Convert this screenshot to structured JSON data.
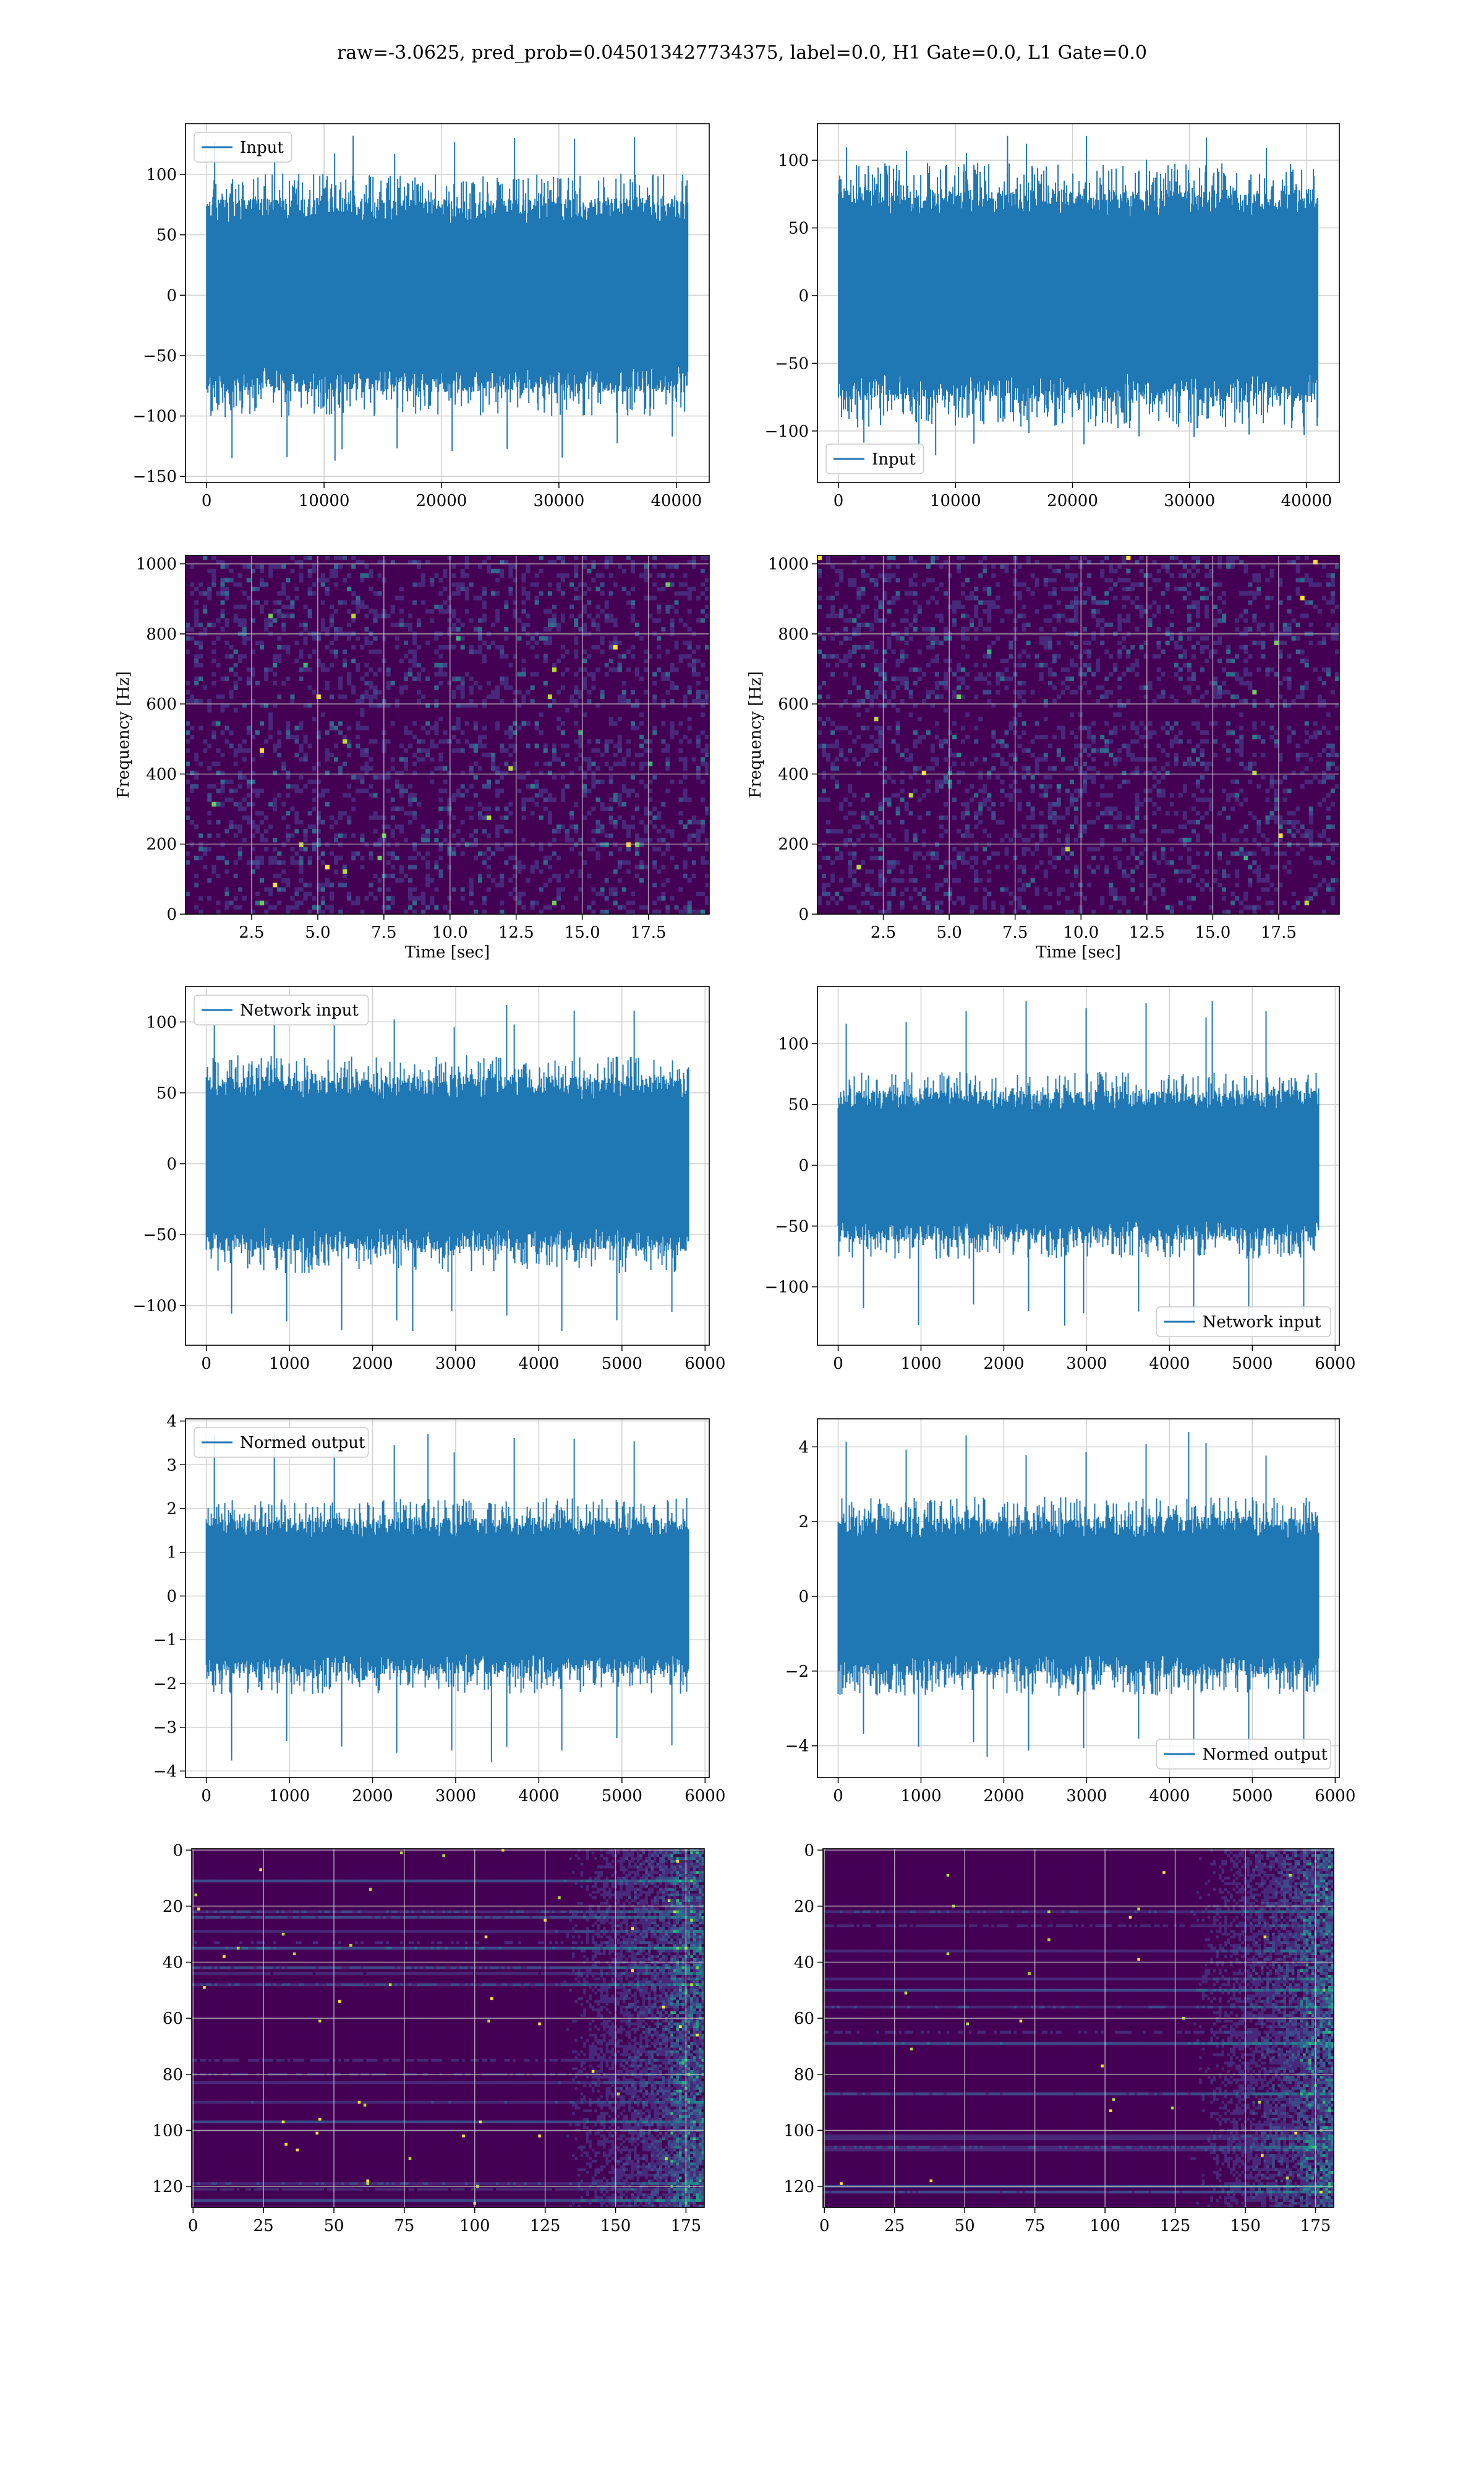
{
  "title": "raw=-3.0625, pred_prob=0.045013427734375, label=0.0, H1 Gate=0.0, L1 Gate=0.0",
  "colors": {
    "line": "#1f77b4",
    "grid": "#d0d0d0",
    "viridis": [
      "#440154",
      "#482878",
      "#3e4989",
      "#31688e",
      "#26828e",
      "#1f9e89",
      "#35b779",
      "#6ece58",
      "#b5de2b",
      "#fde725"
    ]
  },
  "chart_data": [
    {
      "id": "ts-input-left",
      "type": "line",
      "series": [
        {
          "name": "Input",
          "envelope": {
            "n": 40960,
            "typical_abs": 72,
            "peak_max": 132,
            "peak_min": -137
          }
        }
      ],
      "xlim": [
        -1800,
        42800
      ],
      "ylim": [
        -155,
        142
      ],
      "xticks": [
        0,
        10000,
        20000,
        30000,
        40000
      ],
      "yticks": [
        -150,
        -100,
        -50,
        0,
        50,
        100
      ],
      "legend": "upper-left",
      "grid": true
    },
    {
      "id": "ts-input-right",
      "type": "line",
      "series": [
        {
          "name": "Input",
          "envelope": {
            "n": 40960,
            "typical_abs": 70,
            "peak_max": 118,
            "peak_min": -118
          }
        }
      ],
      "xlim": [
        -1800,
        42800
      ],
      "ylim": [
        -138,
        127
      ],
      "xticks": [
        0,
        10000,
        20000,
        30000,
        40000
      ],
      "yticks": [
        -100,
        -50,
        0,
        50,
        100
      ],
      "legend": "lower-left",
      "grid": true
    },
    {
      "id": "spec-left",
      "type": "heatmap",
      "xlabel": "Time [sec]",
      "ylabel": "Frequency [Hz]",
      "xlim": [
        0,
        19.8
      ],
      "ylim": [
        0,
        1024
      ],
      "xticks": [
        2.5,
        5.0,
        7.5,
        10.0,
        12.5,
        15.0,
        17.5
      ],
      "yticks": [
        0,
        200,
        400,
        600,
        800,
        1000
      ],
      "colormap": "viridis",
      "grid": true
    },
    {
      "id": "spec-right",
      "type": "heatmap",
      "xlabel": "Time [sec]",
      "ylabel": "Frequency [Hz]",
      "xlim": [
        0,
        19.8
      ],
      "ylim": [
        0,
        1024
      ],
      "xticks": [
        2.5,
        5.0,
        7.5,
        10.0,
        12.5,
        15.0,
        17.5
      ],
      "yticks": [
        0,
        200,
        400,
        600,
        800,
        1000
      ],
      "colormap": "viridis",
      "grid": true
    },
    {
      "id": "ts-network-left",
      "type": "line",
      "series": [
        {
          "name": "Network input",
          "envelope": {
            "n": 5800,
            "typical_abs": 55,
            "peak_max": 112,
            "peak_min": -118
          }
        }
      ],
      "xlim": [
        -250,
        6050
      ],
      "ylim": [
        -128,
        125
      ],
      "xticks": [
        0,
        1000,
        2000,
        3000,
        4000,
        5000,
        6000
      ],
      "yticks": [
        -100,
        -50,
        0,
        50,
        100
      ],
      "legend": "upper-left",
      "grid": true
    },
    {
      "id": "ts-network-right",
      "type": "line",
      "series": [
        {
          "name": "Network input",
          "envelope": {
            "n": 5800,
            "typical_abs": 55,
            "peak_max": 135,
            "peak_min": -132
          }
        }
      ],
      "xlim": [
        -250,
        6050
      ],
      "ylim": [
        -148,
        147
      ],
      "xticks": [
        0,
        1000,
        2000,
        3000,
        4000,
        5000,
        6000
      ],
      "yticks": [
        -100,
        -50,
        0,
        50,
        100
      ],
      "legend": "lower-right",
      "grid": true
    },
    {
      "id": "ts-normed-left",
      "type": "line",
      "series": [
        {
          "name": "Normed output",
          "envelope": {
            "n": 5800,
            "typical_abs": 1.6,
            "peak_max": 3.7,
            "peak_min": -3.8
          }
        }
      ],
      "xlim": [
        -250,
        6050
      ],
      "ylim": [
        -4.15,
        4.05
      ],
      "xticks": [
        0,
        1000,
        2000,
        3000,
        4000,
        5000,
        6000
      ],
      "yticks": [
        -4,
        -3,
        -2,
        -1,
        0,
        1,
        2,
        3,
        4
      ],
      "legend": "upper-left",
      "grid": true
    },
    {
      "id": "ts-normed-right",
      "type": "line",
      "series": [
        {
          "name": "Normed output",
          "envelope": {
            "n": 5800,
            "typical_abs": 1.9,
            "peak_max": 4.4,
            "peak_min": -4.3
          }
        }
      ],
      "xlim": [
        -250,
        6050
      ],
      "ylim": [
        -4.85,
        4.75
      ],
      "xticks": [
        0,
        1000,
        2000,
        3000,
        4000,
        5000,
        6000
      ],
      "yticks": [
        -4,
        -2,
        0,
        2,
        4
      ],
      "legend": "lower-right",
      "grid": true
    },
    {
      "id": "feat-left",
      "type": "heatmap",
      "xlim": [
        -0.5,
        181.5
      ],
      "ylim": [
        127.5,
        -0.5
      ],
      "xticks": [
        0,
        25,
        50,
        75,
        100,
        125,
        150,
        175
      ],
      "yticks": [
        0,
        20,
        40,
        60,
        80,
        100,
        120
      ],
      "colormap": "viridis",
      "grid": true
    },
    {
      "id": "feat-right",
      "type": "heatmap",
      "xlim": [
        -0.5,
        181.5
      ],
      "ylim": [
        127.5,
        -0.5
      ],
      "xticks": [
        0,
        25,
        50,
        75,
        100,
        125,
        150,
        175
      ],
      "yticks": [
        0,
        20,
        40,
        60,
        80,
        100,
        120
      ],
      "colormap": "viridis",
      "grid": true
    }
  ]
}
